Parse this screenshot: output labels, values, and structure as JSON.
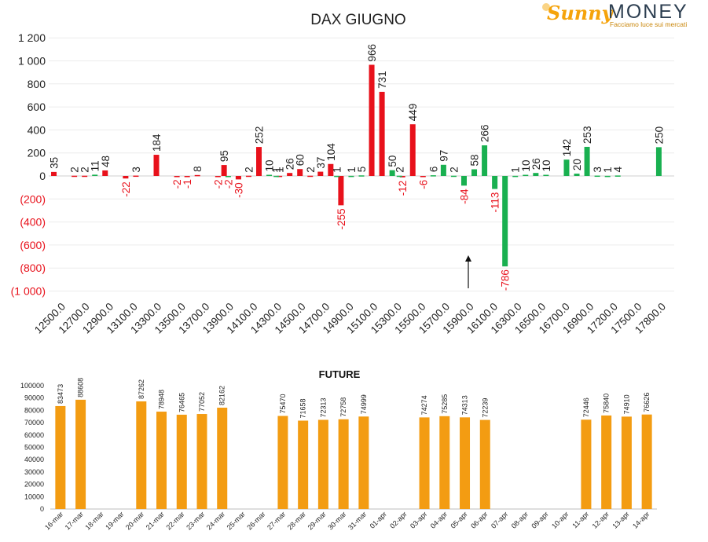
{
  "logo": {
    "brand_a": "Sunny",
    "brand_b": "MONEY",
    "tagline": "Facciamo luce sui mercati"
  },
  "colors": {
    "positive": "#19b050",
    "negative": "#e8111b",
    "future": "#f39c12",
    "neg_label": "#e8111b"
  },
  "chart_data": [
    {
      "type": "bar",
      "title": "DAX GIUGNO",
      "ylim": [
        -1000,
        1200
      ],
      "yticks": [
        1200,
        1000,
        800,
        600,
        400,
        200,
        0,
        -200,
        -400,
        -600,
        -800,
        -1000
      ],
      "ytick_labels": [
        "1 200",
        "1 000",
        "800",
        "600",
        "400",
        "200",
        "0",
        "(200)",
        "(400)",
        "(600)",
        "(800)",
        "(1 000)"
      ],
      "categories": [
        "12500.0",
        "12700.0",
        "12900.0",
        "13100.0",
        "13300.0",
        "13500.0",
        "13700.0",
        "13900.0",
        "14100.0",
        "14300.0",
        "14500.0",
        "14700.0",
        "14900.0",
        "15100.0",
        "15300.0",
        "15500.0",
        "15700.0",
        "15900.0",
        "16100.0",
        "16300.0",
        "16500.0",
        "16700.0",
        "16900.0",
        "17200.0",
        "17500.0",
        "17800.0"
      ],
      "series": [
        {
          "color": "#e8111b",
          "points": [
            {
              "slot": 0,
              "v": 35
            },
            {
              "slot": 2,
              "v": 2
            },
            {
              "slot": 3,
              "v": 2
            },
            {
              "slot": 5,
              "v": 48
            },
            {
              "slot": 7,
              "v": -22
            },
            {
              "slot": 8,
              "v": 3
            },
            {
              "slot": 10,
              "v": 184
            },
            {
              "slot": 12,
              "v": -2
            },
            {
              "slot": 13,
              "v": -1
            },
            {
              "slot": 14,
              "v": 8
            },
            {
              "slot": 16,
              "v": -2
            },
            {
              "slot": 16.6,
              "v": 95
            },
            {
              "slot": 18,
              "v": -30
            },
            {
              "slot": 19,
              "v": 2
            },
            {
              "slot": 20,
              "v": 252
            },
            {
              "slot": 22,
              "v": 1
            },
            {
              "slot": 23,
              "v": 26
            },
            {
              "slot": 24,
              "v": 60
            },
            {
              "slot": 25,
              "v": 2
            },
            {
              "slot": 26,
              "v": 37
            },
            {
              "slot": 27,
              "v": 104
            },
            {
              "slot": 28,
              "v": -255
            },
            {
              "slot": 31,
              "v": 966
            },
            {
              "slot": 32,
              "v": 731
            },
            {
              "slot": 34,
              "v": -12
            },
            {
              "slot": 35,
              "v": 449
            },
            {
              "slot": 36,
              "v": -6
            }
          ]
        },
        {
          "color": "#19b050",
          "points": [
            {
              "slot": 4,
              "v": 11
            },
            {
              "slot": 17,
              "v": -2
            },
            {
              "slot": 21,
              "v": 10
            },
            {
              "slot": 21.7,
              "v": 1
            },
            {
              "slot": 27.6,
              "v": 1
            },
            {
              "slot": 29,
              "v": 1
            },
            {
              "slot": 30,
              "v": 5
            },
            {
              "slot": 33,
              "v": 50
            },
            {
              "slot": 33.7,
              "v": 2
            },
            {
              "slot": 37,
              "v": 6
            },
            {
              "slot": 38,
              "v": 97
            },
            {
              "slot": 39,
              "v": 2
            },
            {
              "slot": 40,
              "v": -84
            },
            {
              "slot": 41,
              "v": 58
            },
            {
              "slot": 42,
              "v": 266
            },
            {
              "slot": 43,
              "v": -113
            },
            {
              "slot": 44,
              "v": -786
            },
            {
              "slot": 45,
              "v": 1
            },
            {
              "slot": 46,
              "v": 10
            },
            {
              "slot": 47,
              "v": 26
            },
            {
              "slot": 48,
              "v": 10
            },
            {
              "slot": 50,
              "v": 142
            },
            {
              "slot": 51,
              "v": 20
            },
            {
              "slot": 52,
              "v": 253
            },
            {
              "slot": 53,
              "v": 3
            },
            {
              "slot": 54,
              "v": 1
            },
            {
              "slot": 55,
              "v": 4
            },
            {
              "slot": 59,
              "v": 250
            }
          ]
        }
      ],
      "annotation": "arrow"
    },
    {
      "type": "bar",
      "title": "FUTURE",
      "ylim": [
        0,
        100000
      ],
      "yticks": [
        0,
        10000,
        20000,
        30000,
        40000,
        50000,
        60000,
        70000,
        80000,
        90000,
        100000
      ],
      "categories": [
        "16-mar",
        "17-mar",
        "18-mar",
        "19-mar",
        "20-mar",
        "21-mar",
        "22-mar",
        "23-mar",
        "24-mar",
        "25-mar",
        "26-mar",
        "27-mar",
        "28-mar",
        "29-mar",
        "30-mar",
        "31-mar",
        "01-apr",
        "02-apr",
        "03-apr",
        "04-apr",
        "05-apr",
        "06-apr",
        "07-apr",
        "08-apr",
        "09-apr",
        "10-apr",
        "11-apr",
        "12-apr",
        "13-apr",
        "14-apr"
      ],
      "values": [
        83473,
        88608,
        null,
        null,
        87262,
        78948,
        76465,
        77052,
        82162,
        null,
        null,
        75470,
        71658,
        72313,
        72758,
        74999,
        null,
        null,
        74274,
        75285,
        74313,
        72239,
        null,
        null,
        null,
        null,
        72446,
        75840,
        74910,
        76626
      ],
      "labels": [
        "83473",
        "88608",
        "",
        "",
        "87262",
        "78948",
        "76465",
        "77052",
        "82162",
        "",
        "",
        "75470",
        "71658",
        "72313",
        "72758",
        "74999",
        "",
        "",
        "74274",
        "75285",
        "74313",
        "72239",
        "",
        "",
        "",
        "",
        "72446",
        "75840",
        "74910",
        "76626"
      ],
      "color": "#f39c12"
    }
  ]
}
